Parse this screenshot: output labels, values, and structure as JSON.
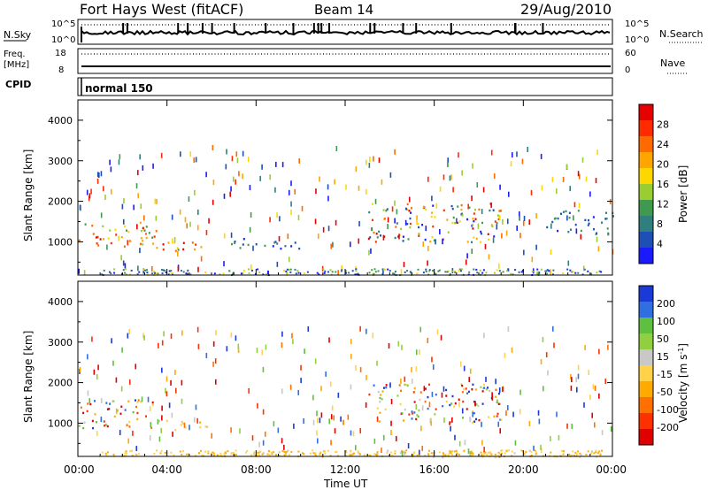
{
  "header": {
    "station": "Fort Hays West (fitACF)",
    "beam": "Beam 14",
    "date": "29/Aug/2010"
  },
  "strips": {
    "nsky": {
      "label": "N.Sky",
      "right_label": "N.Search",
      "ticks_left": [
        "10^5",
        "10^0"
      ],
      "ticks_right": [
        "10^5",
        "10^0"
      ]
    },
    "freq": {
      "label_line1": "Freq.",
      "label_line2": "[MHz]",
      "right_label": "Nave",
      "ticks_left": [
        "18",
        "8"
      ],
      "ticks_right": [
        "60",
        "0"
      ]
    },
    "cpid": {
      "label": "CPID",
      "mode_text": "normal 150"
    }
  },
  "colors": {
    "power_scale": [
      "#1a1aff",
      "#1d4fb5",
      "#2f7f7f",
      "#3f9a4f",
      "#9acd32",
      "#ffd700",
      "#ffa500",
      "#ff6a00",
      "#ff2a00",
      "#e60000"
    ],
    "velocity_scale": [
      "#1a3ad6",
      "#2f6fe0",
      "#5fbf3f",
      "#90d040",
      "#c8c8c8",
      "#ffd24a",
      "#ffaa00",
      "#ff7000",
      "#ff3000",
      "#e00000"
    ]
  },
  "chart_data": [
    {
      "type": "heatmap",
      "title": "",
      "xlabel": "",
      "ylabel": "Slant Range [km]",
      "xlim": [
        0,
        24
      ],
      "ylim": [
        180,
        4500
      ],
      "xticks": [
        "00:00",
        "04:00",
        "08:00",
        "12:00",
        "16:00",
        "20:00",
        "00:00"
      ],
      "yticks": [
        "1000",
        "2000",
        "3000",
        "4000"
      ],
      "colorbar": {
        "label": "Power [dB]",
        "range": [
          0,
          30
        ],
        "ticks": [
          "4",
          "8",
          "12",
          "16",
          "20",
          "24",
          "28"
        ]
      },
      "regions": [
        {
          "t_start": 0.0,
          "t_end": 3.5,
          "range_low": 850,
          "range_high": 1500,
          "level": "high",
          "value": 20
        },
        {
          "t_start": 3.5,
          "t_end": 6.0,
          "range_low": 800,
          "range_high": 1100,
          "level": "high",
          "value": 16
        },
        {
          "t_start": 6.0,
          "t_end": 10.0,
          "range_low": 850,
          "range_high": 1100,
          "level": "low",
          "value": 6
        },
        {
          "t_start": 13.0,
          "t_end": 19.0,
          "range_low": 1000,
          "range_high": 2000,
          "level": "mixed",
          "value": 10
        },
        {
          "t_start": 21.0,
          "t_end": 24.0,
          "range_low": 1200,
          "range_high": 1800,
          "level": "low",
          "value": 6
        }
      ]
    },
    {
      "type": "heatmap",
      "title": "",
      "xlabel": "Time UT",
      "ylabel": "Slant Range [km]",
      "xlim": [
        0,
        24
      ],
      "ylim": [
        180,
        4500
      ],
      "xticks": [
        "00:00",
        "04:00",
        "08:00",
        "12:00",
        "16:00",
        "20:00",
        "00:00"
      ],
      "yticks": [
        "1000",
        "2000",
        "3000",
        "4000"
      ],
      "colorbar": {
        "label": "Velocity [m s^-1]",
        "range": [
          -250,
          250
        ],
        "ticks": [
          "200",
          "100",
          "50",
          "15",
          "-15",
          "-50",
          "-100",
          "-200"
        ]
      },
      "regions": [
        {
          "t_start": 0.0,
          "t_end": 3.5,
          "range_low": 900,
          "range_high": 1600,
          "level": "mixed",
          "value": -20
        },
        {
          "t_start": 3.5,
          "t_end": 6.0,
          "range_low": 850,
          "range_high": 1100,
          "level": "ground",
          "value": 0
        },
        {
          "t_start": 13.0,
          "t_end": 19.0,
          "range_low": 1000,
          "range_high": 2000,
          "level": "mixed",
          "value": 10
        },
        {
          "t_start": 6.0,
          "t_end": 24.0,
          "range_low": 180,
          "range_high": 350,
          "level": "ground",
          "value": -30
        }
      ]
    }
  ]
}
